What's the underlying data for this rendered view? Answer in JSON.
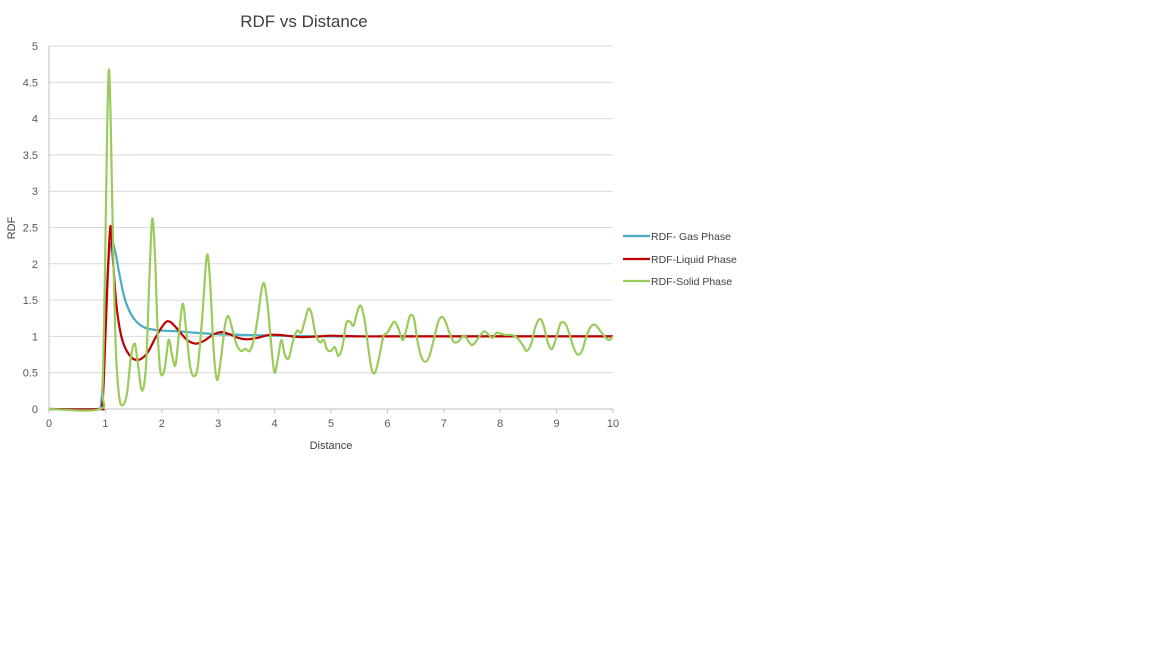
{
  "chart_data": {
    "type": "line",
    "title": "RDF vs Distance",
    "xlabel": "Distance",
    "ylabel": "RDF",
    "xlim": [
      0,
      10
    ],
    "ylim": [
      0,
      5
    ],
    "x_ticks": [
      "0",
      "1",
      "2",
      "3",
      "4",
      "5",
      "6",
      "7",
      "8",
      "9",
      "10"
    ],
    "y_ticks": [
      "0",
      "0.5",
      "1",
      "1.5",
      "2",
      "2.5",
      "3",
      "3.5",
      "4",
      "4.5",
      "5"
    ],
    "grid": "horizontal",
    "legend": "right",
    "series": [
      {
        "name": "RDF- Gas Phase",
        "color": "#4BACC6",
        "points": [
          [
            0,
            0
          ],
          [
            0.85,
            0
          ],
          [
            0.92,
            0.05
          ],
          [
            0.97,
            0.6
          ],
          [
            1.02,
            1.6
          ],
          [
            1.07,
            2.15
          ],
          [
            1.12,
            2.3
          ],
          [
            1.18,
            2.15
          ],
          [
            1.25,
            1.85
          ],
          [
            1.35,
            1.5
          ],
          [
            1.5,
            1.25
          ],
          [
            1.7,
            1.12
          ],
          [
            2.0,
            1.08
          ],
          [
            2.3,
            1.07
          ],
          [
            2.6,
            1.05
          ],
          [
            3.0,
            1.03
          ],
          [
            3.5,
            1.02
          ],
          [
            4.0,
            1.01
          ],
          [
            5.0,
            1.0
          ],
          [
            6.0,
            1.0
          ],
          [
            7.0,
            1.0
          ],
          [
            8.0,
            1.0
          ],
          [
            9.0,
            1.0
          ],
          [
            10.0,
            1.0
          ]
        ]
      },
      {
        "name": "RDF-Liquid Phase",
        "color": "#C00000",
        "points": [
          [
            0,
            0
          ],
          [
            0.88,
            0
          ],
          [
            0.95,
            0.1
          ],
          [
            1.0,
            1.0
          ],
          [
            1.05,
            2.0
          ],
          [
            1.09,
            2.52
          ],
          [
            1.13,
            2.1
          ],
          [
            1.2,
            1.4
          ],
          [
            1.3,
            0.95
          ],
          [
            1.45,
            0.72
          ],
          [
            1.6,
            0.68
          ],
          [
            1.75,
            0.78
          ],
          [
            1.9,
            1.0
          ],
          [
            2.05,
            1.18
          ],
          [
            2.15,
            1.2
          ],
          [
            2.3,
            1.08
          ],
          [
            2.45,
            0.95
          ],
          [
            2.6,
            0.9
          ],
          [
            2.75,
            0.94
          ],
          [
            2.9,
            1.02
          ],
          [
            3.05,
            1.06
          ],
          [
            3.2,
            1.03
          ],
          [
            3.35,
            0.98
          ],
          [
            3.5,
            0.96
          ],
          [
            3.7,
            0.98
          ],
          [
            3.9,
            1.02
          ],
          [
            4.1,
            1.02
          ],
          [
            4.3,
            1.0
          ],
          [
            4.5,
            0.99
          ],
          [
            4.8,
            1.0
          ],
          [
            5.0,
            1.01
          ],
          [
            5.5,
            1.0
          ],
          [
            6.0,
            1.0
          ],
          [
            7.0,
            1.0
          ],
          [
            8.0,
            1.0
          ],
          [
            9.0,
            1.0
          ],
          [
            10.0,
            1.0
          ]
        ]
      },
      {
        "name": "RDF-Solid Phase",
        "color": "#9BCB5A",
        "points": [
          [
            0,
            0
          ],
          [
            0.9,
            0
          ],
          [
            0.95,
            0.3
          ],
          [
            0.99,
            1.8
          ],
          [
            1.03,
            3.8
          ],
          [
            1.06,
            4.67
          ],
          [
            1.09,
            4.1
          ],
          [
            1.13,
            2.5
          ],
          [
            1.18,
            0.9
          ],
          [
            1.24,
            0.2
          ],
          [
            1.3,
            0.05
          ],
          [
            1.38,
            0.2
          ],
          [
            1.45,
            0.7
          ],
          [
            1.52,
            0.9
          ],
          [
            1.58,
            0.6
          ],
          [
            1.65,
            0.25
          ],
          [
            1.72,
            0.6
          ],
          [
            1.78,
            1.8
          ],
          [
            1.83,
            2.62
          ],
          [
            1.88,
            2.1
          ],
          [
            1.93,
            1.0
          ],
          [
            1.98,
            0.5
          ],
          [
            2.05,
            0.55
          ],
          [
            2.12,
            0.95
          ],
          [
            2.18,
            0.75
          ],
          [
            2.24,
            0.6
          ],
          [
            2.3,
            1.0
          ],
          [
            2.37,
            1.45
          ],
          [
            2.43,
            1.1
          ],
          [
            2.5,
            0.6
          ],
          [
            2.57,
            0.45
          ],
          [
            2.64,
            0.6
          ],
          [
            2.72,
            1.3
          ],
          [
            2.8,
            2.12
          ],
          [
            2.86,
            1.7
          ],
          [
            2.92,
            0.8
          ],
          [
            2.98,
            0.4
          ],
          [
            3.05,
            0.7
          ],
          [
            3.12,
            1.15
          ],
          [
            3.18,
            1.28
          ],
          [
            3.25,
            1.1
          ],
          [
            3.32,
            0.9
          ],
          [
            3.4,
            0.8
          ],
          [
            3.48,
            0.83
          ],
          [
            3.56,
            0.8
          ],
          [
            3.63,
            0.95
          ],
          [
            3.7,
            1.25
          ],
          [
            3.77,
            1.65
          ],
          [
            3.82,
            1.72
          ],
          [
            3.88,
            1.4
          ],
          [
            3.95,
            0.8
          ],
          [
            4.0,
            0.5
          ],
          [
            4.06,
            0.7
          ],
          [
            4.12,
            0.95
          ],
          [
            4.18,
            0.75
          ],
          [
            4.25,
            0.7
          ],
          [
            4.33,
            0.95
          ],
          [
            4.4,
            1.08
          ],
          [
            4.47,
            1.05
          ],
          [
            4.53,
            1.2
          ],
          [
            4.6,
            1.38
          ],
          [
            4.66,
            1.3
          ],
          [
            4.72,
            1.05
          ],
          [
            4.8,
            0.92
          ],
          [
            4.87,
            0.95
          ],
          [
            4.93,
            0.82
          ],
          [
            5.0,
            0.8
          ],
          [
            5.07,
            0.85
          ],
          [
            5.13,
            0.73
          ],
          [
            5.2,
            0.85
          ],
          [
            5.27,
            1.18
          ],
          [
            5.34,
            1.2
          ],
          [
            5.4,
            1.15
          ],
          [
            5.47,
            1.35
          ],
          [
            5.53,
            1.42
          ],
          [
            5.6,
            1.2
          ],
          [
            5.66,
            0.85
          ],
          [
            5.72,
            0.55
          ],
          [
            5.78,
            0.5
          ],
          [
            5.85,
            0.7
          ],
          [
            5.93,
            1.0
          ],
          [
            6.0,
            1.05
          ],
          [
            6.07,
            1.15
          ],
          [
            6.13,
            1.2
          ],
          [
            6.2,
            1.1
          ],
          [
            6.27,
            0.95
          ],
          [
            6.33,
            1.08
          ],
          [
            6.4,
            1.28
          ],
          [
            6.47,
            1.25
          ],
          [
            6.53,
            0.95
          ],
          [
            6.6,
            0.72
          ],
          [
            6.67,
            0.65
          ],
          [
            6.74,
            0.72
          ],
          [
            6.82,
            0.95
          ],
          [
            6.9,
            1.2
          ],
          [
            6.97,
            1.27
          ],
          [
            7.03,
            1.2
          ],
          [
            7.1,
            1.05
          ],
          [
            7.17,
            0.93
          ],
          [
            7.24,
            0.92
          ],
          [
            7.3,
            0.97
          ],
          [
            7.37,
            1.01
          ],
          [
            7.44,
            0.93
          ],
          [
            7.5,
            0.88
          ],
          [
            7.57,
            0.93
          ],
          [
            7.65,
            1.02
          ],
          [
            7.72,
            1.07
          ],
          [
            7.8,
            1.02
          ],
          [
            7.87,
            0.98
          ],
          [
            7.93,
            1.05
          ],
          [
            8.0,
            1.04
          ],
          [
            8.1,
            1.02
          ],
          [
            8.2,
            1.02
          ],
          [
            8.3,
            0.98
          ],
          [
            8.4,
            0.88
          ],
          [
            8.47,
            0.8
          ],
          [
            8.55,
            0.9
          ],
          [
            8.62,
            1.12
          ],
          [
            8.7,
            1.24
          ],
          [
            8.77,
            1.15
          ],
          [
            8.85,
            0.9
          ],
          [
            8.92,
            0.83
          ],
          [
            9.0,
            1.0
          ],
          [
            9.07,
            1.18
          ],
          [
            9.15,
            1.18
          ],
          [
            9.22,
            1.05
          ],
          [
            9.3,
            0.85
          ],
          [
            9.37,
            0.75
          ],
          [
            9.45,
            0.8
          ],
          [
            9.52,
            0.98
          ],
          [
            9.6,
            1.13
          ],
          [
            9.68,
            1.16
          ],
          [
            9.77,
            1.08
          ],
          [
            9.85,
            1.0
          ],
          [
            9.93,
            0.95
          ],
          [
            10.0,
            1.0
          ]
        ]
      }
    ]
  }
}
